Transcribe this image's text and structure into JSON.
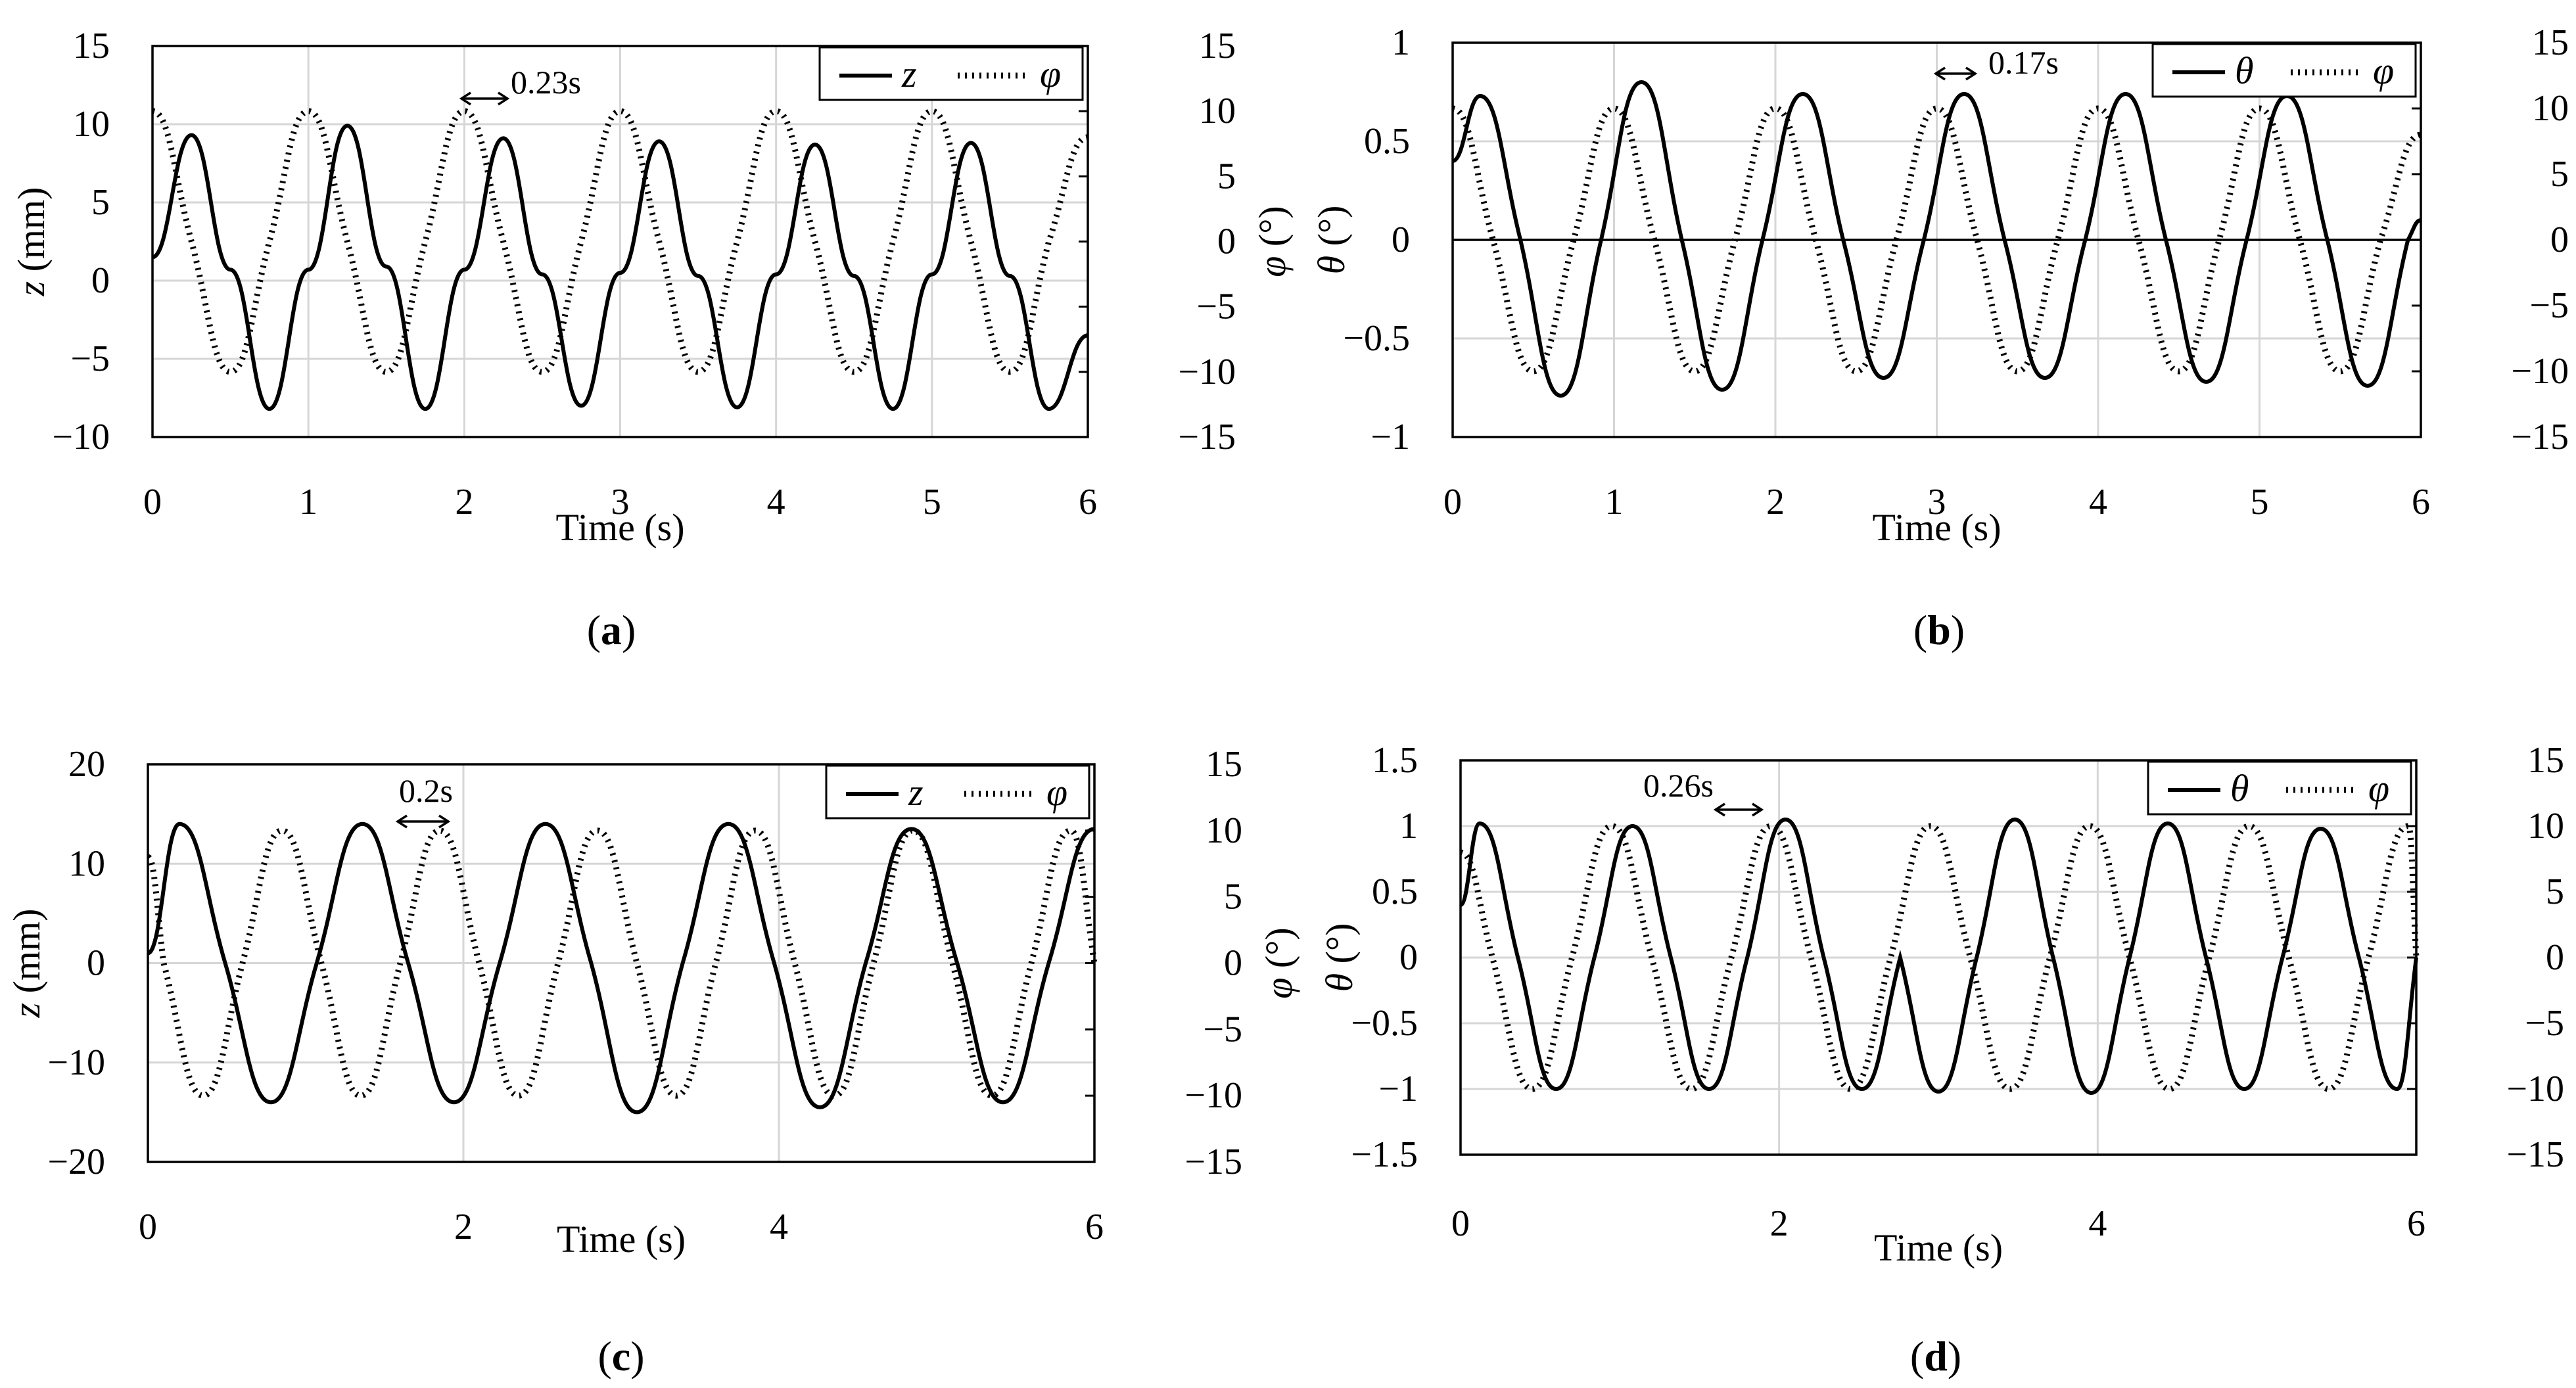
{
  "figure": {
    "panels": [
      {
        "caption": "a",
        "legend": [
          "z",
          "φ"
        ],
        "annotation": "0.23s",
        "left_axis_var": "z",
        "left_axis_unit": " (mm)",
        "right_axis_var": "φ",
        "right_axis_unit": " (°)",
        "xlabel": "Time (s)"
      },
      {
        "caption": "b",
        "legend": [
          "θ",
          "φ"
        ],
        "annotation": "0.17s",
        "left_axis_var": "θ",
        "left_axis_unit": " (°)",
        "right_axis_var": "φ",
        "right_axis_unit": " (°)",
        "xlabel": "Time (s)"
      },
      {
        "caption": "c",
        "legend": [
          "z",
          "φ"
        ],
        "annotation": "0.2s",
        "left_axis_var": "z",
        "left_axis_unit": " (mm)",
        "right_axis_var": "φ",
        "right_axis_unit": " (°)",
        "xlabel": "Time (s)"
      },
      {
        "caption": "d",
        "legend": [
          "θ",
          "φ"
        ],
        "annotation": "0.26s",
        "left_axis_var": "θ",
        "left_axis_unit": " (°)",
        "right_axis_var": "φ",
        "right_axis_unit": " (°)",
        "xlabel": "Time (s)"
      }
    ]
  },
  "chart_data": [
    {
      "type": "line",
      "xlabel": "Time (s)",
      "xlim": [
        0,
        6
      ],
      "xticks": [
        "0",
        "1",
        "2",
        "3",
        "4",
        "5",
        "6"
      ],
      "ylabel_left": "z (mm)",
      "ylim_left": [
        -10,
        15
      ],
      "yticks_left": [
        "−10",
        "−5",
        "0",
        "5",
        "10",
        "15"
      ],
      "ylabel_right": "φ (°)",
      "ylim_right": [
        -15,
        15
      ],
      "yticks_right": [
        "−15",
        "−10",
        "−5",
        "0",
        "5",
        "10",
        "15"
      ],
      "grid": true,
      "legend_position": "top-right",
      "series": [
        {
          "name": "z",
          "axis": "left",
          "style": "solid",
          "x": [
            0,
            0.25,
            0.5,
            0.75,
            1.0,
            1.25,
            1.5,
            1.75,
            2.0,
            2.25,
            2.5,
            2.75,
            3.0,
            3.25,
            3.5,
            3.75,
            4.0,
            4.25,
            4.5,
            4.75,
            5.0,
            5.25,
            5.5,
            5.75,
            6.0
          ],
          "y": [
            1.5,
            9.3,
            0.7,
            -8.2,
            0.7,
            9.9,
            0.9,
            -8.2,
            0.7,
            9.1,
            0.4,
            -8.0,
            0.5,
            8.9,
            0.3,
            -8.1,
            0.4,
            8.7,
            0.3,
            -8.2,
            0.4,
            8.8,
            0.3,
            -8.2,
            -3.5
          ]
        },
        {
          "name": "φ",
          "axis": "right",
          "style": "dotted",
          "x": [
            0,
            0.25,
            0.5,
            0.75,
            1.0,
            1.25,
            1.5,
            1.75,
            2.0,
            2.25,
            2.5,
            2.75,
            3.0,
            3.25,
            3.5,
            3.75,
            4.0,
            4.25,
            4.5,
            4.75,
            5.0,
            5.25,
            5.5,
            5.75,
            6.0
          ],
          "y": [
            10,
            0,
            -10,
            0,
            10,
            0,
            -10,
            0,
            10,
            0,
            -10,
            0,
            10,
            0,
            -10,
            0,
            10,
            0,
            -10,
            0,
            10,
            0,
            -10,
            0,
            8
          ]
        }
      ]
    },
    {
      "type": "line",
      "xlabel": "Time (s)",
      "xlim": [
        0,
        6
      ],
      "xticks": [
        "0",
        "1",
        "2",
        "3",
        "4",
        "5",
        "6"
      ],
      "ylabel_left": "θ (°)",
      "ylim_left": [
        -1,
        1
      ],
      "yticks_left": [
        "−1",
        "−0.5",
        "0",
        "0.5",
        "1"
      ],
      "ylabel_right": "φ (°)",
      "ylim_right": [
        -15,
        15
      ],
      "yticks_right": [
        "−15",
        "−10",
        "−5",
        "0",
        "5",
        "10",
        "15"
      ],
      "grid": true,
      "legend_position": "top-right",
      "series": [
        {
          "name": "θ",
          "axis": "left",
          "style": "solid",
          "x": [
            0,
            0.17,
            0.42,
            0.67,
            0.92,
            1.17,
            1.42,
            1.67,
            1.92,
            2.17,
            2.42,
            2.67,
            2.92,
            3.17,
            3.42,
            3.67,
            3.92,
            4.17,
            4.42,
            4.67,
            4.92,
            5.17,
            5.42,
            5.67,
            5.92,
            6.0
          ],
          "y": [
            0.4,
            0.73,
            0.0,
            -0.79,
            0.0,
            0.8,
            0.0,
            -0.76,
            0.0,
            0.74,
            0.0,
            -0.7,
            0.0,
            0.74,
            0.0,
            -0.7,
            0.0,
            0.74,
            0.0,
            -0.72,
            0.0,
            0.73,
            0.0,
            -0.74,
            0.0,
            0.1
          ]
        },
        {
          "name": "φ",
          "axis": "right",
          "style": "dotted",
          "x": [
            0,
            0.25,
            0.5,
            0.75,
            1.0,
            1.25,
            1.5,
            1.75,
            2.0,
            2.25,
            2.5,
            2.75,
            3.0,
            3.25,
            3.5,
            3.75,
            4.0,
            4.25,
            4.5,
            4.75,
            5.0,
            5.25,
            5.5,
            5.75,
            6.0
          ],
          "y": [
            10,
            0,
            -10,
            0,
            10,
            0,
            -10,
            0,
            10,
            0,
            -10,
            0,
            10,
            0,
            -10,
            0,
            10,
            0,
            -10,
            0,
            10,
            0,
            -10,
            0,
            8
          ]
        }
      ]
    },
    {
      "type": "line",
      "xlabel": "Time (s)",
      "xlim": [
        0,
        6
      ],
      "xticks": [
        "0",
        "2",
        "4",
        "6"
      ],
      "ylabel_left": "z (mm)",
      "ylim_left": [
        -20,
        20
      ],
      "yticks_left": [
        "−20",
        "−10",
        "0",
        "10",
        "20"
      ],
      "ylabel_right": "φ (°)",
      "ylim_right": [
        -15,
        15
      ],
      "yticks_right": [
        "−15",
        "−10",
        "−5",
        "0",
        "5",
        "10",
        "15"
      ],
      "grid": true,
      "legend_position": "top-right",
      "series": [
        {
          "name": "z",
          "axis": "left",
          "style": "solid",
          "x": [
            0,
            0.2,
            0.49,
            0.78,
            1.07,
            1.36,
            1.65,
            1.94,
            2.23,
            2.52,
            2.81,
            3.1,
            3.39,
            3.68,
            3.97,
            4.26,
            4.55,
            4.84,
            5.13,
            5.42,
            5.71,
            6.0
          ],
          "y": [
            1,
            14,
            0,
            -14,
            0,
            14,
            0,
            -14,
            0,
            14,
            0,
            -15,
            0,
            14,
            0,
            -14.5,
            0,
            13.5,
            0,
            -14,
            0,
            13.5
          ]
        },
        {
          "name": "φ",
          "axis": "right",
          "style": "dotted",
          "x": [
            0,
            0.1,
            0.35,
            0.6,
            0.85,
            1.1,
            1.35,
            1.6,
            1.85,
            2.1,
            2.35,
            2.6,
            2.85,
            3.1,
            3.35,
            3.6,
            3.85,
            4.1,
            4.35,
            4.6,
            4.85,
            5.1,
            5.35,
            5.6,
            5.85,
            6.0
          ],
          "y": [
            8,
            0,
            -10,
            0,
            10,
            0,
            -10,
            0,
            10,
            0,
            -10,
            0,
            10,
            0,
            -10,
            0,
            10,
            0,
            -10,
            0,
            10,
            0,
            -10,
            0,
            10,
            0
          ]
        }
      ]
    },
    {
      "type": "line",
      "xlabel": "Time (s)",
      "xlim": [
        0,
        6
      ],
      "xticks": [
        "0",
        "2",
        "4",
        "6"
      ],
      "ylabel_left": "θ (°)",
      "ylim_left": [
        -1.5,
        1.5
      ],
      "yticks_left": [
        "−1.5",
        "−1",
        "−0.5",
        "0",
        "0.5",
        "1",
        "1.5"
      ],
      "ylabel_right": "φ (°)",
      "ylim_right": [
        -15,
        15
      ],
      "yticks_right": [
        "−15",
        "−10",
        "−5",
        "0",
        "5",
        "10",
        "15"
      ],
      "grid": true,
      "legend_position": "top-right",
      "series": [
        {
          "name": "θ",
          "axis": "left",
          "style": "solid",
          "x": [
            0,
            0.12,
            0.36,
            0.6,
            0.84,
            1.08,
            1.32,
            1.56,
            1.8,
            2.04,
            2.28,
            2.52,
            2.76,
            3.0,
            3.24,
            3.48,
            3.72,
            3.96,
            4.2,
            4.44,
            4.68,
            4.92,
            5.16,
            5.4,
            5.64,
            5.88,
            6.0
          ],
          "y": [
            0.4,
            1.02,
            0,
            -1.0,
            0,
            1.0,
            0,
            -1.0,
            0,
            1.05,
            0,
            -1.0,
            0,
            -1.02,
            0,
            1.05,
            0,
            -1.03,
            0,
            1.02,
            0,
            -1.0,
            0,
            0.98,
            0,
            -1.0,
            0
          ]
        },
        {
          "name": "φ",
          "axis": "right",
          "style": "dotted",
          "x": [
            0,
            0.2,
            0.45,
            0.7,
            0.95,
            1.2,
            1.45,
            1.7,
            1.95,
            2.2,
            2.45,
            2.7,
            2.95,
            3.2,
            3.45,
            3.7,
            3.95,
            4.2,
            4.45,
            4.7,
            4.95,
            5.2,
            5.45,
            5.7,
            5.95,
            6.0
          ],
          "y": [
            8,
            0,
            -10,
            0,
            10,
            0,
            -10,
            0,
            10,
            0,
            -10,
            0,
            10,
            0,
            -10,
            0,
            10,
            0,
            -10,
            0,
            10,
            0,
            -10,
            0,
            10,
            0
          ]
        }
      ]
    }
  ]
}
